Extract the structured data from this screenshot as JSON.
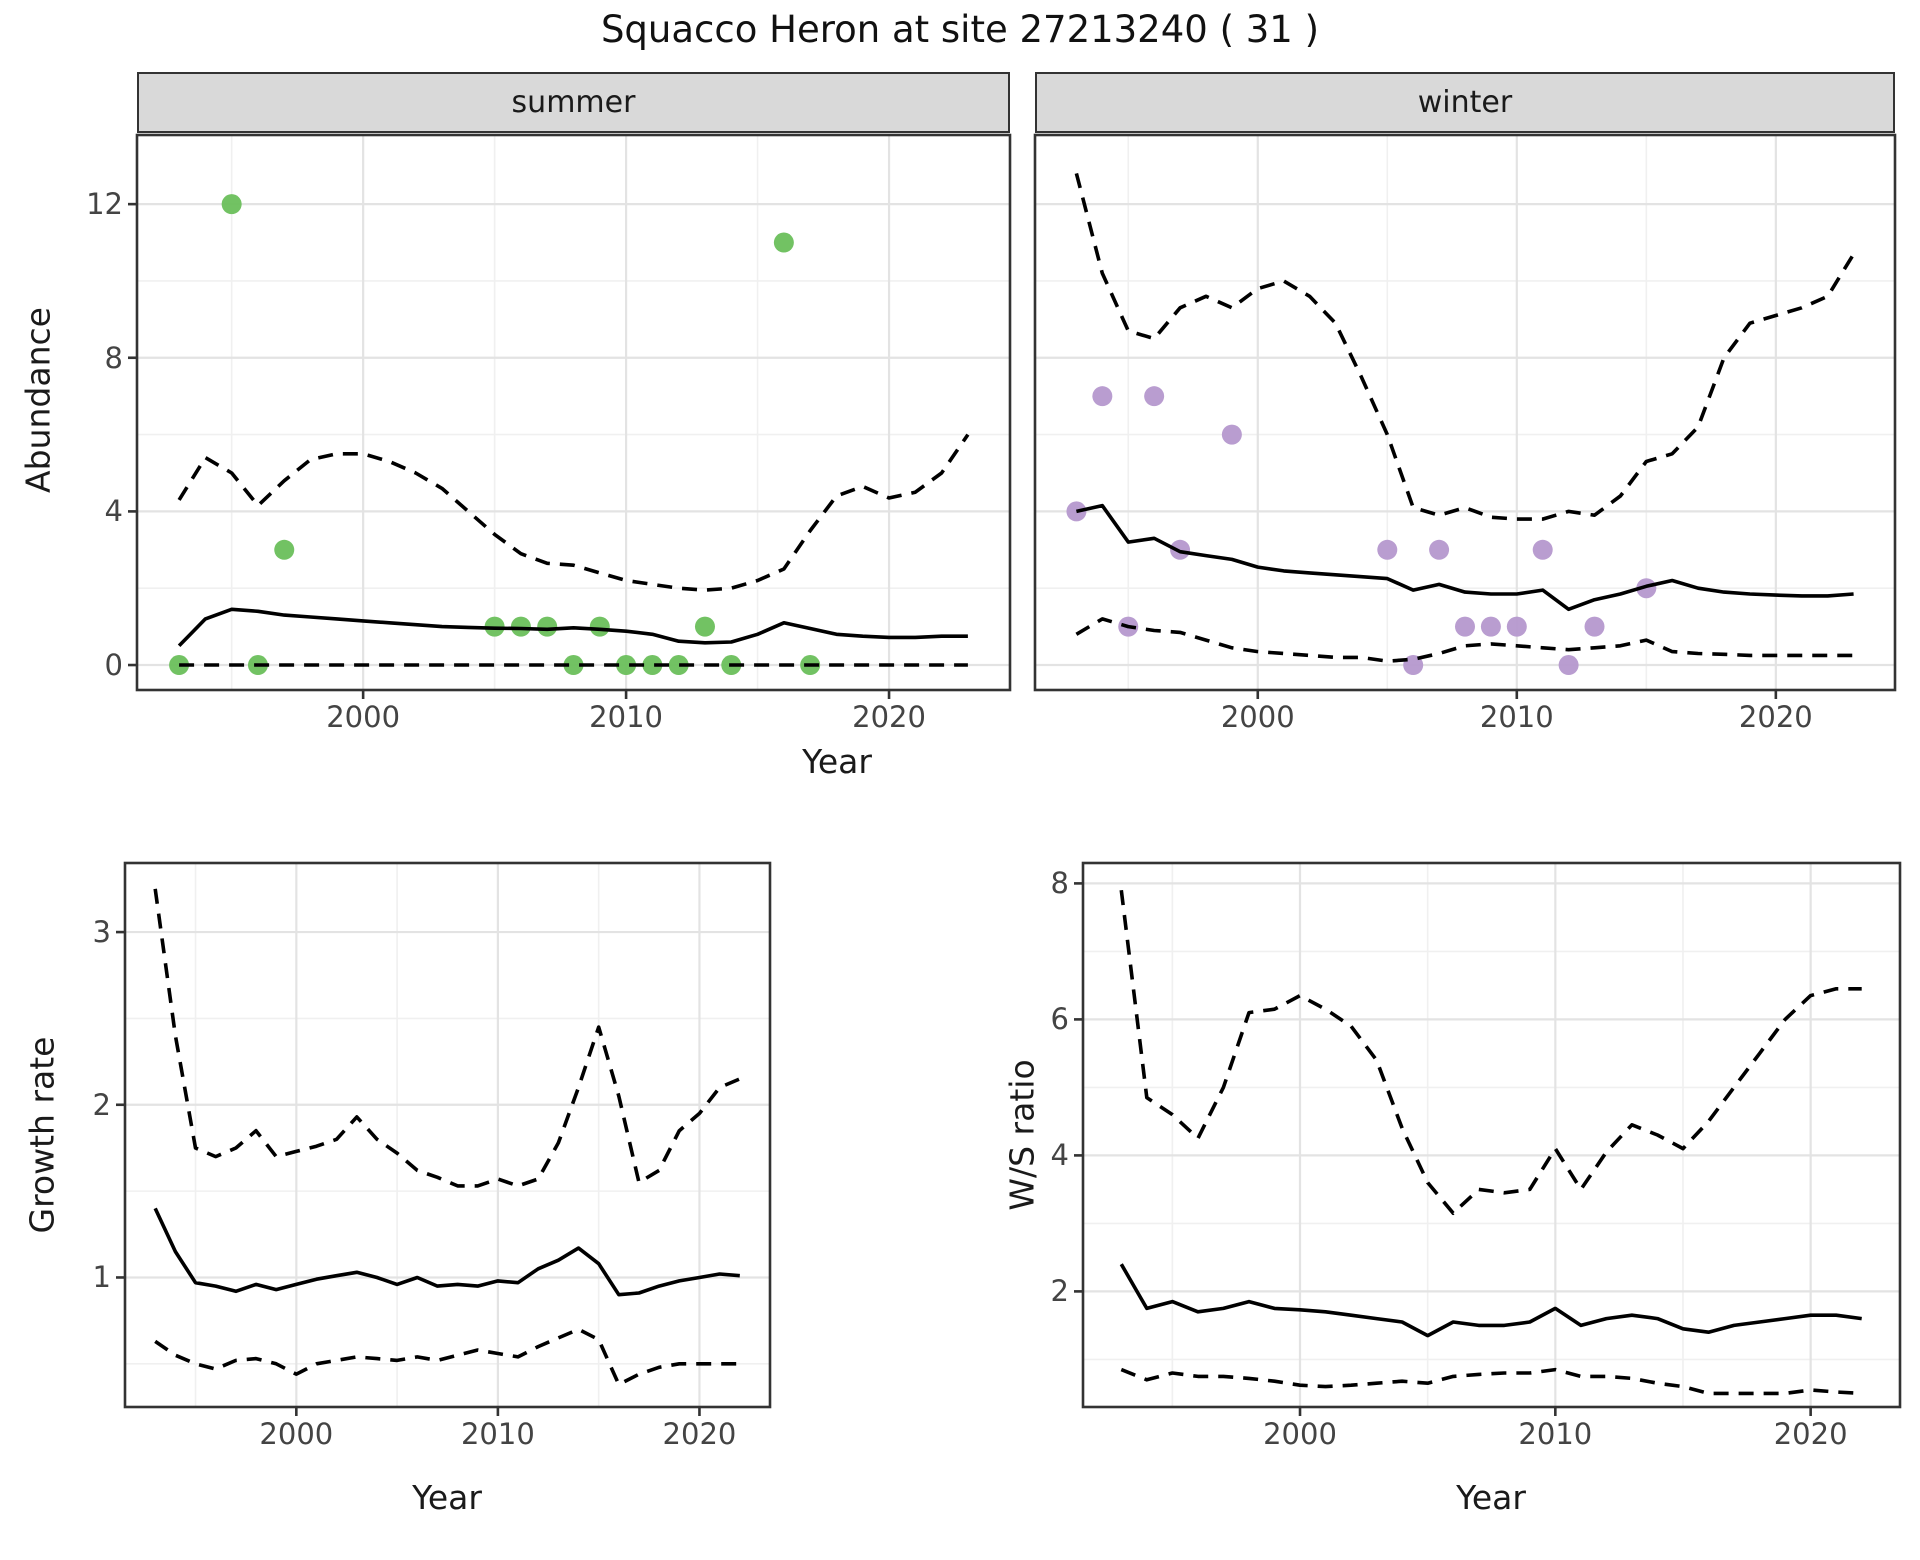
{
  "title": "Squacco Heron at site 27213240 ( 31 )",
  "colors": {
    "summer_point": "#6abf5b",
    "winter_point": "#b598cd",
    "line": "#000000",
    "strip_bg": "#d9d9d9",
    "strip_border": "#333333",
    "panel_border": "#333333",
    "grid_major": "#e3e3e3",
    "grid_minor": "#f0f0f0",
    "tick_text": "#444444",
    "title_text": "#111111"
  },
  "chart_data": [
    {
      "type": "scatter",
      "facet_label": "summer",
      "xlabel": "Year",
      "ylabel": "Abundance",
      "xlim": [
        1991.4,
        2024.6
      ],
      "ylim": [
        -0.65,
        13.8
      ],
      "xticks": [
        2000,
        2010,
        2020
      ],
      "yticks": [
        0,
        4,
        8,
        12
      ],
      "xticks_minor": [
        1995,
        2005,
        2015
      ],
      "yticks_minor": [
        2,
        6,
        10
      ],
      "grid": "on",
      "point_color": "#6abf5b",
      "points": {
        "x": [
          1993,
          1995,
          1996,
          1997,
          2005,
          2006,
          2007,
          2008,
          2009,
          2010,
          2011,
          2012,
          2013,
          2014,
          2016,
          2017
        ],
        "y": [
          0,
          12,
          0,
          3,
          1,
          1,
          1,
          0,
          1,
          0,
          0,
          0,
          1,
          0,
          11,
          0
        ]
      },
      "x": [
        1993,
        1994,
        1995,
        1996,
        1997,
        1998,
        1999,
        2000,
        2001,
        2002,
        2003,
        2004,
        2005,
        2006,
        2007,
        2008,
        2009,
        2010,
        2011,
        2012,
        2013,
        2014,
        2015,
        2016,
        2017,
        2018,
        2019,
        2020,
        2021,
        2022,
        2023
      ],
      "series": [
        {
          "name": "upper-credible",
          "style": "dashed",
          "values": [
            4.3,
            5.4,
            5.0,
            4.15,
            4.8,
            5.35,
            5.5,
            5.5,
            5.3,
            5.0,
            4.6,
            4.0,
            3.4,
            2.9,
            2.65,
            2.6,
            2.4,
            2.2,
            2.1,
            2.0,
            1.95,
            2.0,
            2.2,
            2.5,
            3.5,
            4.4,
            4.65,
            4.35,
            4.5,
            5.0,
            6.0
          ]
        },
        {
          "name": "median",
          "style": "solid",
          "values": [
            0.5,
            1.2,
            1.45,
            1.4,
            1.3,
            1.25,
            1.2,
            1.15,
            1.1,
            1.05,
            1.0,
            0.98,
            0.96,
            0.95,
            0.93,
            0.97,
            0.93,
            0.88,
            0.8,
            0.62,
            0.58,
            0.6,
            0.8,
            1.1,
            0.95,
            0.8,
            0.75,
            0.72,
            0.72,
            0.75,
            0.75
          ]
        },
        {
          "name": "lower-credible",
          "style": "dashed",
          "values": [
            0,
            0,
            0,
            0,
            0,
            0,
            0,
            0,
            0,
            0,
            0,
            0,
            0,
            0,
            0,
            0,
            0,
            0,
            0,
            0,
            0,
            0,
            0,
            0,
            0,
            0,
            0,
            0,
            0,
            0,
            0
          ]
        }
      ]
    },
    {
      "type": "scatter",
      "facet_label": "winter",
      "xlabel": "Year",
      "ylabel": "Abundance",
      "xlim": [
        1991.4,
        2024.6
      ],
      "ylim": [
        -0.65,
        13.8
      ],
      "xticks": [
        2000,
        2010,
        2020
      ],
      "yticks": [
        0,
        4,
        8,
        12
      ],
      "xticks_minor": [
        1995,
        2005,
        2015
      ],
      "yticks_minor": [
        2,
        6,
        10
      ],
      "grid": "on",
      "point_color": "#b598cd",
      "points": {
        "x": [
          1993,
          1994,
          1995,
          1996,
          1997,
          1999,
          2005,
          2006,
          2007,
          2008,
          2009,
          2010,
          2011,
          2012,
          2013,
          2015
        ],
        "y": [
          4,
          7,
          1,
          7,
          3,
          6,
          3,
          0,
          3,
          1,
          1,
          1,
          3,
          0,
          1,
          2
        ]
      },
      "x": [
        1993,
        1994,
        1995,
        1996,
        1997,
        1998,
        1999,
        2000,
        2001,
        2002,
        2003,
        2004,
        2005,
        2006,
        2007,
        2008,
        2009,
        2010,
        2011,
        2012,
        2013,
        2014,
        2015,
        2016,
        2017,
        2018,
        2019,
        2020,
        2021,
        2022,
        2023
      ],
      "series": [
        {
          "name": "upper-credible",
          "style": "dashed",
          "values": [
            12.8,
            10.2,
            8.7,
            8.5,
            9.3,
            9.6,
            9.3,
            9.8,
            10.0,
            9.6,
            8.9,
            7.5,
            6.0,
            4.1,
            3.9,
            4.1,
            3.85,
            3.8,
            3.8,
            4.0,
            3.9,
            4.4,
            5.3,
            5.5,
            6.2,
            8.0,
            8.9,
            9.1,
            9.3,
            9.6,
            10.7
          ]
        },
        {
          "name": "median",
          "style": "solid",
          "values": [
            4.0,
            4.15,
            3.2,
            3.3,
            2.95,
            2.85,
            2.75,
            2.55,
            2.45,
            2.4,
            2.35,
            2.3,
            2.25,
            1.95,
            2.1,
            1.9,
            1.85,
            1.85,
            1.95,
            1.45,
            1.7,
            1.85,
            2.05,
            2.2,
            2.0,
            1.9,
            1.85,
            1.82,
            1.8,
            1.8,
            1.85
          ]
        },
        {
          "name": "lower-credible",
          "style": "dashed",
          "values": [
            0.8,
            1.2,
            1.0,
            0.9,
            0.85,
            0.65,
            0.45,
            0.35,
            0.3,
            0.25,
            0.2,
            0.2,
            0.1,
            0.15,
            0.3,
            0.5,
            0.55,
            0.5,
            0.45,
            0.4,
            0.45,
            0.5,
            0.65,
            0.35,
            0.3,
            0.28,
            0.25,
            0.25,
            0.25,
            0.25,
            0.25
          ]
        }
      ]
    },
    {
      "type": "line",
      "facet_label": "",
      "xlabel": "Year",
      "ylabel": "Growth rate",
      "xlim": [
        1991.5,
        2023.5
      ],
      "ylim": [
        0.25,
        3.4
      ],
      "xticks": [
        2000,
        2010,
        2020
      ],
      "yticks": [
        1,
        2,
        3
      ],
      "xticks_minor": [
        1995,
        2005,
        2015
      ],
      "yticks_minor": [
        0.5,
        1.5,
        2.5
      ],
      "grid": "on",
      "x": [
        1993,
        1994,
        1995,
        1996,
        1997,
        1998,
        1999,
        2000,
        2001,
        2002,
        2003,
        2004,
        2005,
        2006,
        2007,
        2008,
        2009,
        2010,
        2011,
        2012,
        2013,
        2014,
        2015,
        2016,
        2017,
        2018,
        2019,
        2020,
        2021,
        2022
      ],
      "series": [
        {
          "name": "upper-credible",
          "style": "dashed",
          "values": [
            3.25,
            2.4,
            1.75,
            1.7,
            1.75,
            1.85,
            1.7,
            1.73,
            1.76,
            1.8,
            1.93,
            1.8,
            1.72,
            1.62,
            1.58,
            1.53,
            1.53,
            1.57,
            1.53,
            1.57,
            1.78,
            2.1,
            2.45,
            2.05,
            1.55,
            1.62,
            1.85,
            1.95,
            2.1,
            2.15
          ]
        },
        {
          "name": "median",
          "style": "solid",
          "values": [
            1.4,
            1.15,
            0.97,
            0.95,
            0.92,
            0.96,
            0.93,
            0.96,
            0.99,
            1.01,
            1.03,
            1.0,
            0.96,
            1.0,
            0.95,
            0.96,
            0.95,
            0.98,
            0.97,
            1.05,
            1.1,
            1.17,
            1.08,
            0.9,
            0.91,
            0.95,
            0.98,
            1.0,
            1.02,
            1.01
          ]
        },
        {
          "name": "lower-credible",
          "style": "dashed",
          "values": [
            0.63,
            0.55,
            0.5,
            0.47,
            0.52,
            0.53,
            0.5,
            0.44,
            0.5,
            0.52,
            0.54,
            0.53,
            0.52,
            0.54,
            0.52,
            0.55,
            0.58,
            0.56,
            0.54,
            0.6,
            0.65,
            0.7,
            0.64,
            0.38,
            0.44,
            0.48,
            0.5,
            0.5,
            0.5,
            0.5
          ]
        }
      ]
    },
    {
      "type": "line",
      "facet_label": "",
      "xlabel": "Year",
      "ylabel": "W/S ratio",
      "xlim": [
        1991.5,
        2023.5
      ],
      "ylim": [
        0.3,
        8.3
      ],
      "xticks": [
        2000,
        2010,
        2020
      ],
      "yticks": [
        2,
        4,
        6,
        8
      ],
      "xticks_minor": [
        1995,
        2005,
        2015
      ],
      "yticks_minor": [
        1,
        3,
        5,
        7
      ],
      "grid": "on",
      "x": [
        1993,
        1994,
        1995,
        1996,
        1997,
        1998,
        1999,
        2000,
        2001,
        2002,
        2003,
        2004,
        2005,
        2006,
        2007,
        2008,
        2009,
        2010,
        2011,
        2012,
        2013,
        2014,
        2015,
        2016,
        2017,
        2018,
        2019,
        2020,
        2021,
        2022
      ],
      "series": [
        {
          "name": "upper-credible",
          "style": "dashed",
          "values": [
            7.9,
            4.85,
            4.6,
            4.25,
            5.0,
            6.1,
            6.15,
            6.35,
            6.15,
            5.9,
            5.4,
            4.4,
            3.6,
            3.15,
            3.5,
            3.45,
            3.5,
            4.1,
            3.5,
            4.05,
            4.45,
            4.3,
            4.1,
            4.5,
            5.0,
            5.5,
            6.0,
            6.35,
            6.45,
            6.45
          ]
        },
        {
          "name": "median",
          "style": "solid",
          "values": [
            2.4,
            1.75,
            1.85,
            1.7,
            1.75,
            1.85,
            1.75,
            1.73,
            1.7,
            1.65,
            1.6,
            1.55,
            1.35,
            1.55,
            1.5,
            1.5,
            1.55,
            1.75,
            1.5,
            1.6,
            1.65,
            1.6,
            1.45,
            1.4,
            1.5,
            1.55,
            1.6,
            1.65,
            1.65,
            1.6
          ]
        },
        {
          "name": "lower-credible",
          "style": "dashed",
          "values": [
            0.85,
            0.7,
            0.8,
            0.75,
            0.75,
            0.72,
            0.68,
            0.62,
            0.6,
            0.62,
            0.65,
            0.68,
            0.65,
            0.75,
            0.78,
            0.8,
            0.8,
            0.85,
            0.75,
            0.75,
            0.72,
            0.65,
            0.6,
            0.5,
            0.5,
            0.5,
            0.5,
            0.55,
            0.52,
            0.5
          ]
        }
      ]
    }
  ]
}
